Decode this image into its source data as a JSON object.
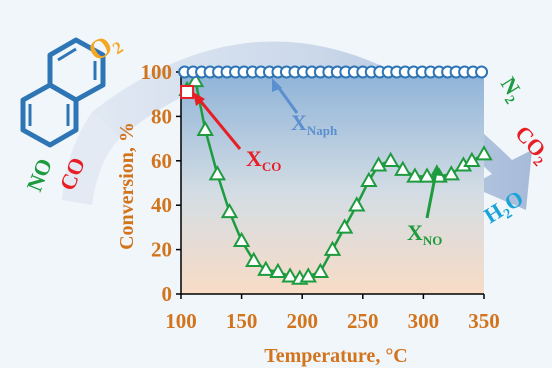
{
  "chart_data": {
    "type": "line",
    "title": "",
    "xlabel": "Temperature, °C",
    "ylabel": "Conversion, %",
    "xlim": [
      100,
      350
    ],
    "ylim": [
      0,
      100
    ],
    "xticks": [
      "100",
      "150",
      "200",
      "250",
      "300",
      "350"
    ],
    "yticks": [
      "0",
      "20",
      "40",
      "60",
      "80",
      "100"
    ],
    "grid": false,
    "series": [
      {
        "name": "XNaph",
        "marker": "circle",
        "color": "#2e75b6",
        "x": [
          103,
          110,
          117,
          124,
          131,
          138,
          145,
          152,
          159,
          166,
          173,
          180,
          187,
          194,
          201,
          208,
          215,
          222,
          229,
          236,
          243,
          250,
          257,
          264,
          271,
          278,
          285,
          292,
          299,
          306,
          313,
          320,
          327,
          334,
          341,
          348
        ],
        "y": [
          100,
          100,
          100,
          100,
          100,
          100,
          100,
          100,
          100,
          100,
          100,
          100,
          100,
          100,
          100,
          100,
          100,
          100,
          100,
          100,
          100,
          100,
          100,
          100,
          100,
          100,
          100,
          100,
          100,
          100,
          100,
          100,
          100,
          100,
          100,
          100
        ]
      },
      {
        "name": "XCO",
        "marker": "square",
        "color": "#e81e25",
        "x": [
          105
        ],
        "y": [
          91
        ]
      },
      {
        "name": "XNO",
        "marker": "triangle",
        "color": "#1e9b3f",
        "x": [
          105,
          112,
          120,
          130,
          140,
          150,
          160,
          170,
          180,
          190,
          198,
          205,
          215,
          225,
          235,
          245,
          255,
          263,
          273,
          283,
          293,
          303,
          313,
          323,
          333,
          340,
          350
        ],
        "y": [
          92,
          96,
          74,
          54,
          37,
          24,
          15,
          11,
          10,
          8,
          7,
          8,
          10,
          20,
          30,
          40,
          51,
          58,
          60,
          56,
          53,
          53,
          53,
          54,
          58,
          60,
          63
        ]
      }
    ]
  },
  "annotations": {
    "x_naph": {
      "main": "X",
      "sub": "Naph"
    },
    "x_co": {
      "main": "X",
      "sub": "CO"
    },
    "x_no": {
      "main": "X",
      "sub": "NO"
    }
  },
  "molecules": {
    "o2": {
      "main": "O",
      "sub": "2"
    },
    "no": "NO",
    "co": "CO",
    "n2": {
      "main": "N",
      "sub": "2"
    },
    "co2": {
      "main": "CO",
      "sub": "2"
    },
    "h2o": {
      "main1": "H",
      "sub": "2",
      "main2": "O"
    }
  },
  "colors": {
    "axis_text": "#d2741c",
    "naph": "#2e75b6",
    "co": "#e81e25",
    "no": "#1e9b3f",
    "o2": "#f5a623",
    "h2o": "#1aa3d9"
  }
}
